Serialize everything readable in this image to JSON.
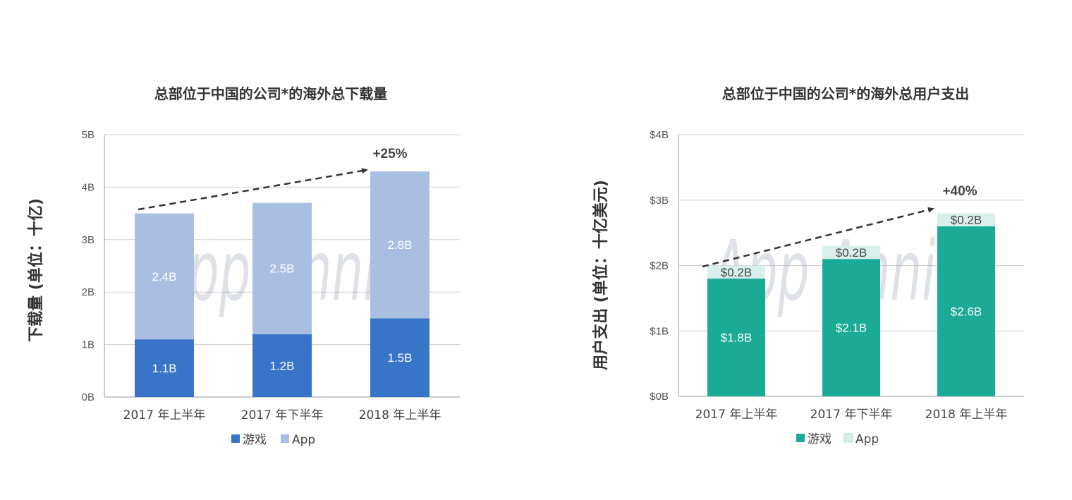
{
  "chart_data": [
    {
      "type": "bar",
      "stacked": true,
      "title": "总部位于中国的公司*的海外总下载量",
      "ylabel": "下载量 (单位：十亿)",
      "categories": [
        "2017 年上半年",
        "2017 年下半年",
        "2018 年上半年"
      ],
      "ylim": [
        0,
        5
      ],
      "yticks": [
        "0B",
        "1B",
        "2B",
        "3B",
        "4B",
        "5B"
      ],
      "grid": true,
      "legend_position": "bottom",
      "series": [
        {
          "name": "游戏",
          "color": "#3874c8",
          "values": [
            1.1,
            1.2,
            1.5
          ],
          "labels": [
            "1.1B",
            "1.2B",
            "1.5B"
          ],
          "label_color": "#ffffff"
        },
        {
          "name": "App",
          "color": "#a9bfe2",
          "values": [
            2.4,
            2.5,
            2.8
          ],
          "labels": [
            "2.4B",
            "2.5B",
            "2.8B"
          ],
          "label_color": "#ffffff"
        }
      ],
      "annotation": "+25%",
      "watermark": "App Annie"
    },
    {
      "type": "bar",
      "stacked": true,
      "title": "总部位于中国的公司*的海外总用户支出",
      "ylabel": "用户支出 (单位：十亿美元)",
      "categories": [
        "2017 年上半年",
        "2017 年下半年",
        "2018 年上半年"
      ],
      "ylim": [
        0,
        4
      ],
      "yticks": [
        "$0B",
        "$1B",
        "$2B",
        "$3B",
        "$4B"
      ],
      "grid": true,
      "legend_position": "bottom",
      "series": [
        {
          "name": "游戏",
          "color": "#1aaa96",
          "values": [
            1.8,
            2.1,
            2.6
          ],
          "labels": [
            "$1.8B",
            "$2.1B",
            "$2.6B"
          ],
          "label_color": "#ffffff"
        },
        {
          "name": "App",
          "color": "#d8efec",
          "values": [
            0.2,
            0.2,
            0.2
          ],
          "labels": [
            "$0.2B",
            "$0.2B",
            "$0.2B"
          ],
          "label_color": "#444444"
        }
      ],
      "annotation": "+40%",
      "watermark": "App Annie"
    }
  ]
}
